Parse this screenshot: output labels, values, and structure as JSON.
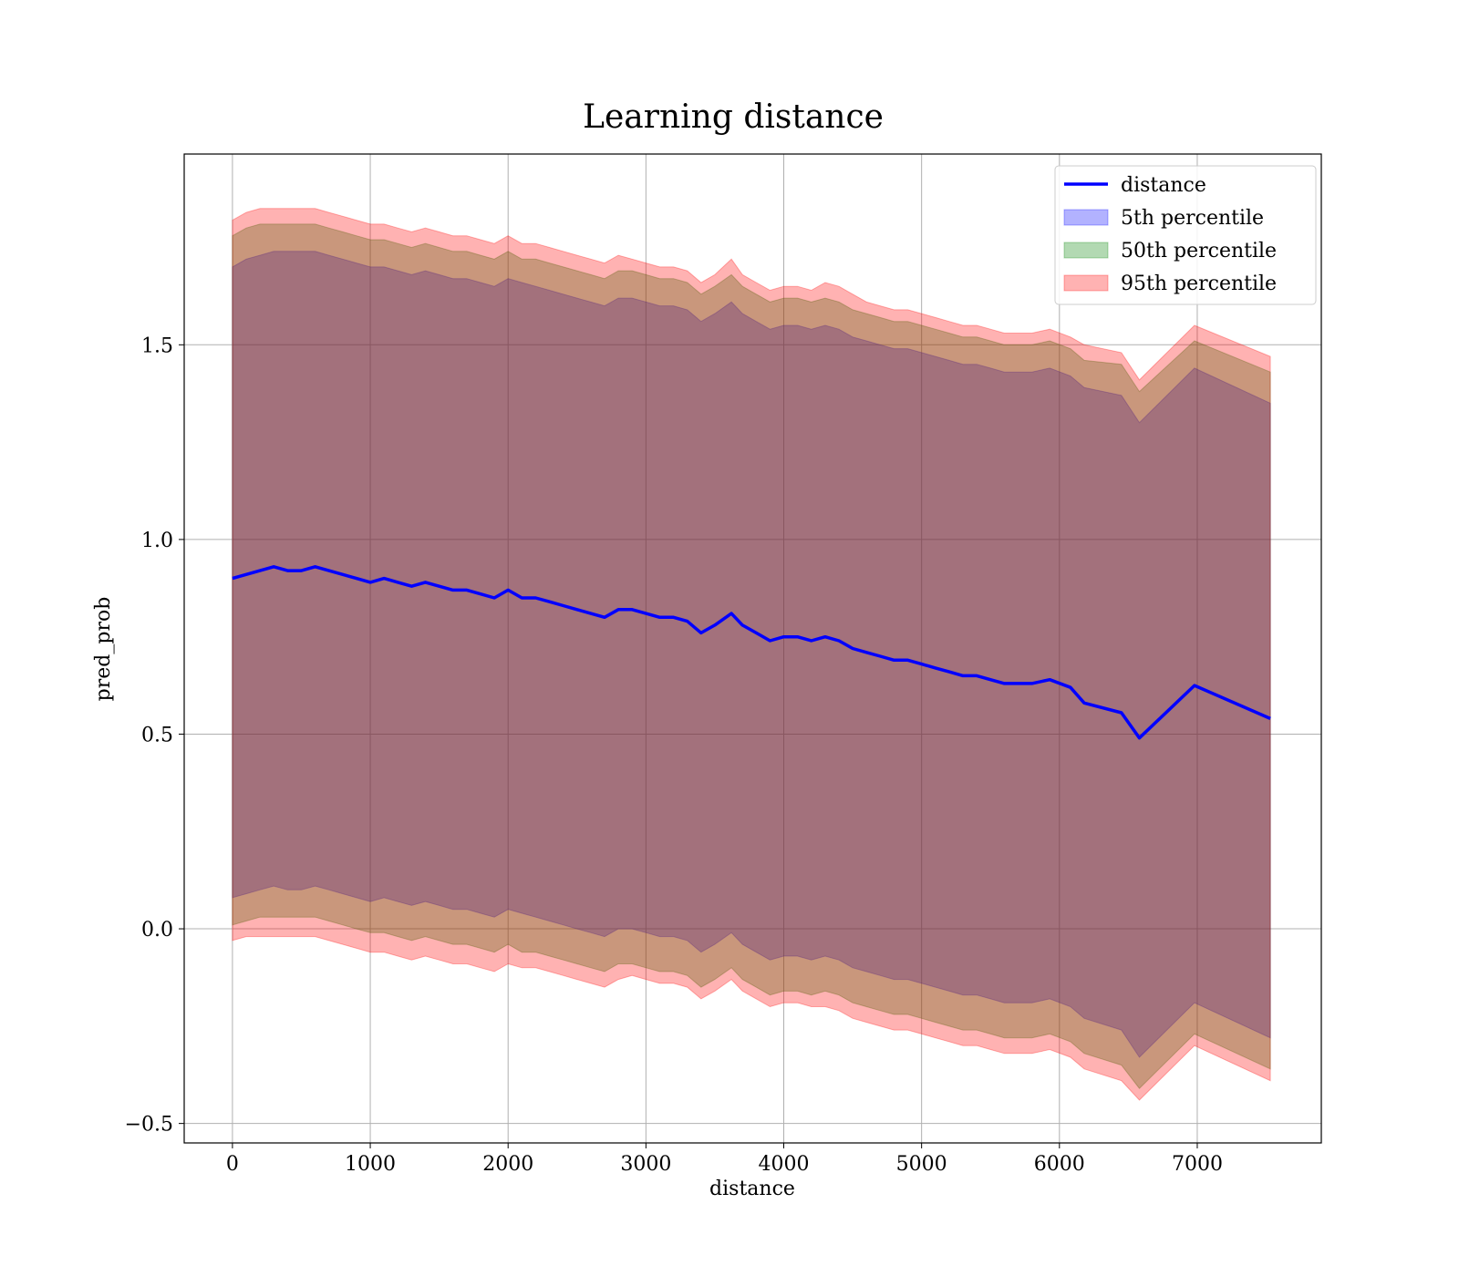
{
  "chart_data": {
    "type": "line",
    "title": "Learning distance",
    "xlabel": "distance",
    "ylabel": "pred_prob",
    "xlim": [
      -350,
      7900
    ],
    "ylim": [
      -0.55,
      1.99
    ],
    "grid": true,
    "legend_position": "top-right",
    "xticks": [
      0,
      1000,
      2000,
      3000,
      4000,
      5000,
      6000,
      7000
    ],
    "xtick_labels": [
      "0",
      "1000",
      "2000",
      "3000",
      "4000",
      "5000",
      "6000",
      "7000"
    ],
    "yticks": [
      -0.5,
      0.0,
      0.5,
      1.0,
      1.5
    ],
    "ytick_labels": [
      "−0.5",
      "0.0",
      "0.5",
      "1.0",
      "1.5"
    ],
    "x": [
      0,
      100,
      200,
      300,
      400,
      500,
      600,
      700,
      800,
      900,
      1000,
      1100,
      1200,
      1300,
      1400,
      1500,
      1600,
      1700,
      1800,
      1900,
      2000,
      2100,
      2200,
      2300,
      2400,
      2500,
      2600,
      2700,
      2800,
      2900,
      3000,
      3100,
      3200,
      3300,
      3400,
      3500,
      3620,
      3700,
      3800,
      3900,
      4000,
      4100,
      4200,
      4300,
      4400,
      4500,
      4600,
      4700,
      4800,
      4900,
      5000,
      5100,
      5200,
      5300,
      5400,
      5500,
      5600,
      5700,
      5800,
      5930,
      6080,
      6180,
      6450,
      6580,
      6980,
      7530
    ],
    "series": [
      {
        "name": "distance",
        "kind": "line",
        "color": "#0000ff",
        "values": [
          0.9,
          0.91,
          0.92,
          0.93,
          0.92,
          0.92,
          0.93,
          0.92,
          0.91,
          0.9,
          0.89,
          0.9,
          0.89,
          0.88,
          0.89,
          0.88,
          0.87,
          0.87,
          0.86,
          0.85,
          0.87,
          0.85,
          0.85,
          0.84,
          0.83,
          0.82,
          0.81,
          0.8,
          0.82,
          0.82,
          0.81,
          0.8,
          0.8,
          0.79,
          0.76,
          0.78,
          0.81,
          0.78,
          0.76,
          0.74,
          0.75,
          0.75,
          0.74,
          0.75,
          0.74,
          0.72,
          0.71,
          0.7,
          0.69,
          0.69,
          0.68,
          0.67,
          0.66,
          0.65,
          0.65,
          0.64,
          0.63,
          0.63,
          0.63,
          0.64,
          0.62,
          0.58,
          0.555,
          0.49,
          0.625,
          0.54
        ]
      },
      {
        "name": "5th percentile",
        "kind": "band",
        "color": "#0000ff",
        "upper": [
          1.7,
          1.72,
          1.73,
          1.74,
          1.74,
          1.74,
          1.74,
          1.73,
          1.72,
          1.71,
          1.7,
          1.7,
          1.69,
          1.68,
          1.69,
          1.68,
          1.67,
          1.67,
          1.66,
          1.65,
          1.67,
          1.66,
          1.65,
          1.64,
          1.63,
          1.62,
          1.61,
          1.6,
          1.62,
          1.62,
          1.61,
          1.6,
          1.6,
          1.59,
          1.56,
          1.58,
          1.61,
          1.58,
          1.56,
          1.54,
          1.55,
          1.55,
          1.54,
          1.55,
          1.54,
          1.52,
          1.51,
          1.5,
          1.49,
          1.49,
          1.48,
          1.47,
          1.46,
          1.45,
          1.45,
          1.44,
          1.43,
          1.43,
          1.43,
          1.44,
          1.42,
          1.39,
          1.37,
          1.3,
          1.44,
          1.35
        ],
        "lower": [
          0.08,
          0.09,
          0.1,
          0.11,
          0.1,
          0.1,
          0.11,
          0.1,
          0.09,
          0.08,
          0.07,
          0.08,
          0.07,
          0.06,
          0.07,
          0.06,
          0.05,
          0.05,
          0.04,
          0.03,
          0.05,
          0.04,
          0.03,
          0.02,
          0.01,
          0.0,
          -0.01,
          -0.02,
          0.0,
          0.0,
          -0.01,
          -0.02,
          -0.02,
          -0.03,
          -0.06,
          -0.04,
          -0.01,
          -0.04,
          -0.06,
          -0.08,
          -0.07,
          -0.07,
          -0.08,
          -0.07,
          -0.08,
          -0.1,
          -0.11,
          -0.12,
          -0.13,
          -0.13,
          -0.14,
          -0.15,
          -0.16,
          -0.17,
          -0.17,
          -0.18,
          -0.19,
          -0.19,
          -0.19,
          -0.18,
          -0.2,
          -0.23,
          -0.26,
          -0.33,
          -0.19,
          -0.28
        ]
      },
      {
        "name": "50th percentile",
        "kind": "band",
        "color": "#008000",
        "upper": [
          1.78,
          1.8,
          1.81,
          1.81,
          1.81,
          1.81,
          1.81,
          1.8,
          1.79,
          1.78,
          1.77,
          1.77,
          1.76,
          1.75,
          1.76,
          1.75,
          1.74,
          1.74,
          1.73,
          1.72,
          1.74,
          1.72,
          1.72,
          1.71,
          1.7,
          1.69,
          1.68,
          1.67,
          1.69,
          1.69,
          1.68,
          1.67,
          1.67,
          1.66,
          1.63,
          1.65,
          1.68,
          1.65,
          1.63,
          1.61,
          1.62,
          1.62,
          1.61,
          1.62,
          1.61,
          1.59,
          1.58,
          1.57,
          1.56,
          1.56,
          1.55,
          1.54,
          1.53,
          1.52,
          1.52,
          1.51,
          1.5,
          1.5,
          1.5,
          1.51,
          1.49,
          1.46,
          1.45,
          1.38,
          1.51,
          1.43
        ],
        "lower": [
          0.01,
          0.02,
          0.03,
          0.03,
          0.03,
          0.03,
          0.03,
          0.02,
          0.01,
          0.0,
          -0.01,
          -0.01,
          -0.02,
          -0.03,
          -0.02,
          -0.03,
          -0.04,
          -0.04,
          -0.05,
          -0.06,
          -0.04,
          -0.06,
          -0.06,
          -0.07,
          -0.08,
          -0.09,
          -0.1,
          -0.11,
          -0.09,
          -0.09,
          -0.1,
          -0.11,
          -0.11,
          -0.12,
          -0.15,
          -0.13,
          -0.1,
          -0.13,
          -0.15,
          -0.17,
          -0.16,
          -0.16,
          -0.17,
          -0.16,
          -0.17,
          -0.19,
          -0.2,
          -0.21,
          -0.22,
          -0.22,
          -0.23,
          -0.24,
          -0.25,
          -0.26,
          -0.26,
          -0.27,
          -0.28,
          -0.28,
          -0.28,
          -0.27,
          -0.29,
          -0.32,
          -0.35,
          -0.41,
          -0.27,
          -0.36
        ]
      },
      {
        "name": "95th percentile",
        "kind": "band",
        "color": "#ff0000",
        "upper": [
          1.82,
          1.84,
          1.85,
          1.85,
          1.85,
          1.85,
          1.85,
          1.84,
          1.83,
          1.82,
          1.81,
          1.81,
          1.8,
          1.79,
          1.8,
          1.79,
          1.78,
          1.78,
          1.77,
          1.76,
          1.78,
          1.76,
          1.76,
          1.75,
          1.74,
          1.73,
          1.72,
          1.71,
          1.73,
          1.72,
          1.71,
          1.7,
          1.7,
          1.69,
          1.66,
          1.68,
          1.72,
          1.68,
          1.66,
          1.64,
          1.65,
          1.65,
          1.64,
          1.66,
          1.65,
          1.63,
          1.61,
          1.6,
          1.59,
          1.59,
          1.58,
          1.57,
          1.56,
          1.55,
          1.55,
          1.54,
          1.53,
          1.53,
          1.53,
          1.54,
          1.52,
          1.5,
          1.48,
          1.41,
          1.55,
          1.47
        ],
        "lower": [
          -0.03,
          -0.02,
          -0.02,
          -0.02,
          -0.02,
          -0.02,
          -0.02,
          -0.03,
          -0.04,
          -0.05,
          -0.06,
          -0.06,
          -0.07,
          -0.08,
          -0.07,
          -0.08,
          -0.09,
          -0.09,
          -0.1,
          -0.11,
          -0.09,
          -0.1,
          -0.1,
          -0.11,
          -0.12,
          -0.13,
          -0.14,
          -0.15,
          -0.13,
          -0.12,
          -0.13,
          -0.14,
          -0.14,
          -0.15,
          -0.18,
          -0.16,
          -0.13,
          -0.16,
          -0.18,
          -0.2,
          -0.19,
          -0.19,
          -0.2,
          -0.2,
          -0.21,
          -0.23,
          -0.24,
          -0.25,
          -0.26,
          -0.26,
          -0.27,
          -0.28,
          -0.29,
          -0.3,
          -0.3,
          -0.31,
          -0.32,
          -0.32,
          -0.32,
          -0.31,
          -0.33,
          -0.36,
          -0.39,
          -0.44,
          -0.3,
          -0.39
        ]
      }
    ]
  }
}
